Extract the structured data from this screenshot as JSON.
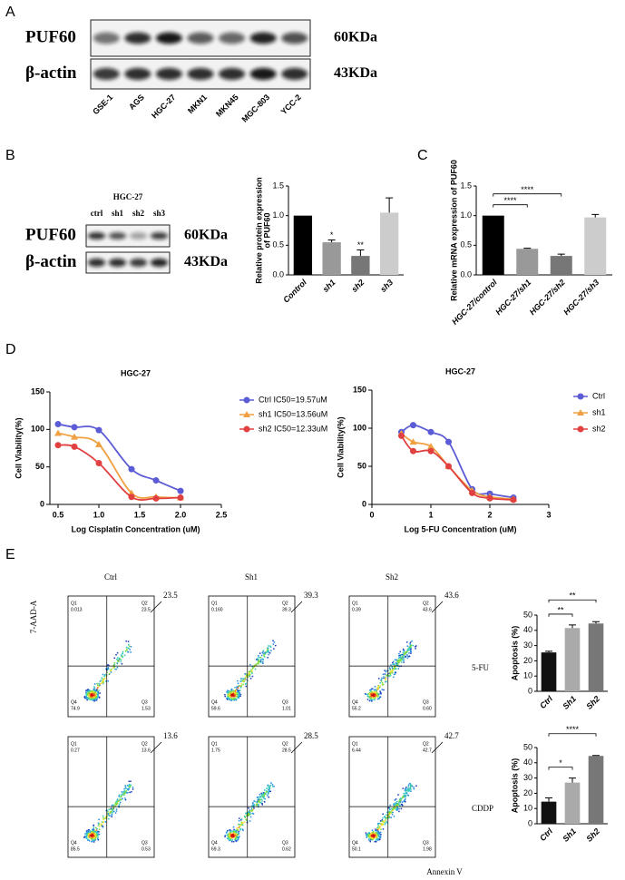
{
  "figure": {
    "panel_labels": [
      "A",
      "B",
      "C",
      "D",
      "E"
    ]
  },
  "blot_A": {
    "protein": "PUF60",
    "loading": "β-actin",
    "protein_size": "60KDa",
    "loading_size": "43KDa",
    "lanes": [
      "GSE-1",
      "AGS",
      "HGC-27",
      "MKN1",
      "MKN45",
      "MGC-803",
      "YCC-2"
    ]
  },
  "blot_B": {
    "cell_line": "HGC-27",
    "lanes": [
      "ctrl",
      "sh1",
      "sh2",
      "sh3"
    ],
    "protein": "PUF60",
    "loading": "β-actin",
    "protein_size": "60KDa",
    "loading_size": "43KDa"
  },
  "chart_data": [
    {
      "type": "bar",
      "ylabel": [
        "Relative protein expression",
        "of PUF60"
      ],
      "categories": [
        "Control",
        "sh1",
        "sh2",
        "sh3"
      ],
      "values": [
        1.0,
        0.55,
        0.32,
        1.05
      ],
      "errors": [
        null,
        0.04,
        0.1,
        0.25
      ],
      "colors": [
        "#000000",
        "#999999",
        "#777777",
        "#cccccc"
      ],
      "significance": [
        null,
        "*",
        "**",
        null
      ],
      "ylim": [
        0,
        1.5
      ],
      "yticks": [
        {
          "value": 0,
          "label": "0.0"
        },
        {
          "value": 0.5,
          "label": "0.5"
        },
        {
          "value": 1,
          "label": "1.0"
        },
        {
          "value": 1.5,
          "label": "1.5"
        }
      ]
    },
    {
      "type": "bar",
      "ylabel": "Relative mRNA expression of PUF60",
      "categories": [
        "HGC-27/control",
        "HGC-27/sh1",
        "HGC-27/sh2",
        "HGC-27/sh3"
      ],
      "values": [
        1.0,
        0.44,
        0.32,
        0.97
      ],
      "errors": [
        null,
        0.01,
        0.03,
        0.05
      ],
      "colors": [
        "#000000",
        "#999999",
        "#777777",
        "#cccccc"
      ],
      "brackets": [
        {
          "text": "****",
          "from": "HGC-27/control",
          "to": "HGC-27/sh1"
        },
        {
          "text": "****",
          "from": "HGC-27/control",
          "to": "HGC-27/sh2"
        }
      ],
      "ylim": [
        0,
        1.5
      ],
      "yticks": [
        {
          "value": 0,
          "label": "0.0"
        },
        {
          "value": 0.5,
          "label": "0.5"
        },
        {
          "value": 1,
          "label": "1.0"
        },
        {
          "value": 1.5,
          "label": "1.5"
        }
      ]
    },
    {
      "type": "line",
      "title": "HGC-27",
      "xlabel": "Log Cisplatin Concentration (uM)",
      "ylabel": "Cell Viability(%)",
      "x": [
        0.5,
        0.7,
        1.0,
        1.4,
        1.7,
        2.0
      ],
      "series": [
        {
          "name": "Ctrl IC50=19.57uM",
          "color": "#5b5bd6",
          "marker": "circle",
          "values": [
            107,
            103,
            99,
            47,
            32,
            18
          ]
        },
        {
          "name": "sh1 IC50=13.56uM",
          "color": "#f0a040",
          "marker": "triangle",
          "values": [
            95,
            90,
            80,
            15,
            10,
            9
          ]
        },
        {
          "name": "sh2 IC50=12.33uM",
          "color": "#e04040",
          "marker": "circle",
          "values": [
            79,
            77,
            55,
            10,
            8,
            9
          ]
        }
      ],
      "xlim": [
        0.4,
        2.5
      ],
      "xticks": [
        0.5,
        {
          "value": 1,
          "label": "1.0"
        },
        1.5,
        {
          "value": 2,
          "label": "2.0"
        },
        2.5
      ],
      "ylim": [
        0,
        150
      ],
      "yticks": [
        0,
        50,
        100,
        150
      ],
      "legend": "right"
    },
    {
      "type": "line",
      "title": "HGC-27",
      "xlabel": "Log 5-FU Concentration (uM)",
      "ylabel": "Cell Viability(%)",
      "x": [
        0.5,
        0.7,
        1.0,
        1.3,
        1.7,
        2.0,
        2.4
      ],
      "series": [
        {
          "name": "Ctrl",
          "color": "#5b5bd6",
          "marker": "circle",
          "values": [
            95,
            104,
            95,
            82,
            20,
            14,
            9
          ]
        },
        {
          "name": "sh1",
          "color": "#f0a040",
          "marker": "triangle",
          "values": [
            93,
            82,
            76,
            50,
            18,
            10,
            7
          ]
        },
        {
          "name": "sh2",
          "color": "#e04040",
          "marker": "circle",
          "values": [
            90,
            70,
            70,
            50,
            15,
            8,
            6
          ]
        }
      ],
      "xlim": [
        0,
        3
      ],
      "xticks": [
        0,
        1,
        2,
        3
      ],
      "ylim": [
        0,
        150
      ],
      "yticks": [
        0,
        50,
        100,
        150
      ],
      "legend": "right"
    },
    {
      "type": "bar",
      "ylabel": "Apoptosis (%)",
      "categories": [
        "Ctrl",
        "Sh1",
        "Sh2"
      ],
      "values": [
        25.5,
        41.5,
        44.5
      ],
      "errors": [
        0.8,
        2,
        1.2
      ],
      "colors": [
        "#111111",
        "#aaaaaa",
        "#777777"
      ],
      "brackets": [
        {
          "text": "**",
          "from": "Ctrl",
          "to": "Sh1"
        },
        {
          "text": "**",
          "from": "Ctrl",
          "to": "Sh2"
        }
      ],
      "ylim": [
        0,
        50
      ],
      "yticks": [
        0,
        10,
        20,
        30,
        40,
        50
      ]
    },
    {
      "type": "bar",
      "ylabel": "Apoptosis (%)",
      "categories": [
        "Ctrl",
        "Sh1",
        "Sh2"
      ],
      "values": [
        14.5,
        27,
        44.5
      ],
      "errors": [
        2.5,
        3,
        0.3
      ],
      "colors": [
        "#111111",
        "#aaaaaa",
        "#777777"
      ],
      "brackets": [
        {
          "text": "*",
          "from": "Ctrl",
          "to": "Sh1"
        },
        {
          "text": "****",
          "from": "Ctrl",
          "to": "Sh2"
        }
      ],
      "ylim": [
        0,
        50
      ],
      "yticks": [
        0,
        10,
        20,
        30,
        40,
        50
      ]
    }
  ],
  "flow": {
    "y_label": "7-AAD-A",
    "x_label": "Annexin V",
    "columns": [
      "Ctrl",
      "Sh1",
      "Sh2"
    ],
    "quadrant_names": [
      "Q1",
      "Q2",
      "Q3",
      "Q4"
    ],
    "rows": [
      {
        "treatment": "5-FU",
        "plots": [
          {
            "callout": "23.5",
            "quadrant_values": [
              "0.013",
              "23.5",
              "1.53",
              "74.9"
            ]
          },
          {
            "callout": "39.3",
            "quadrant_values": [
              "0.160",
              "39.3",
              "1.01",
              "59.6"
            ]
          },
          {
            "callout": "43.6",
            "quadrant_values": [
              "0.39",
              "43.6",
              "0.60",
              "55.2"
            ]
          }
        ]
      },
      {
        "treatment": "CDDP",
        "plots": [
          {
            "callout": "13.6",
            "quadrant_values": [
              "0.27",
              "13.6",
              "0.53",
              "85.5"
            ]
          },
          {
            "callout": "28.5",
            "quadrant_values": [
              "1.75",
              "28.5",
              "0.62",
              "69.3"
            ]
          },
          {
            "callout": "42.7",
            "quadrant_values": [
              "6.44",
              "42.7",
              "1.98",
              "50.1"
            ]
          }
        ]
      }
    ]
  }
}
